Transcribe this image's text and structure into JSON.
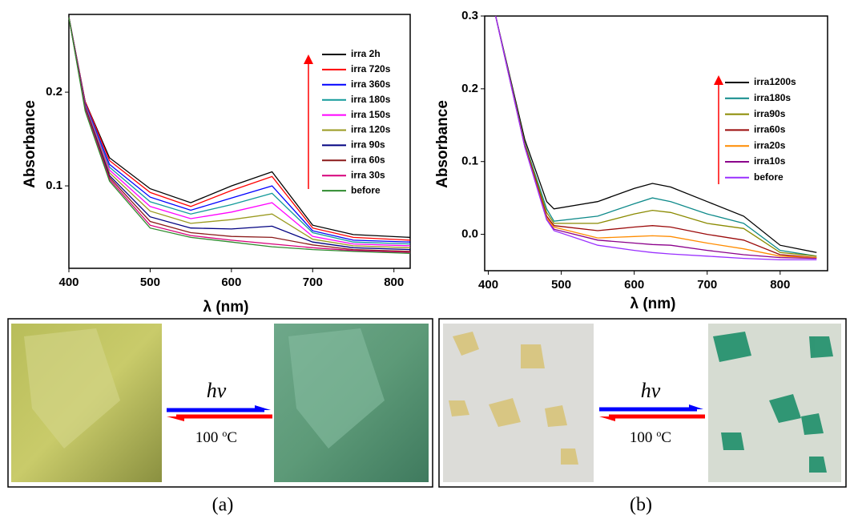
{
  "chart_data": [
    {
      "type": "line",
      "ylabel": "Absorbance",
      "xlabel": "λ (nm)",
      "x": [
        400,
        420,
        450,
        500,
        550,
        600,
        650,
        700,
        750,
        820
      ],
      "xlim": [
        400,
        820
      ],
      "xticks": [
        400,
        500,
        600,
        700,
        800
      ],
      "ylim": [
        0.012,
        0.283
      ],
      "yticks": [
        0.1,
        0.2
      ],
      "series": [
        {
          "name": "irra 2h",
          "color": "#000000",
          "values": [
            0.28,
            0.19,
            0.13,
            0.097,
            0.082,
            0.1,
            0.115,
            0.058,
            0.048,
            0.045
          ]
        },
        {
          "name": "irra 720s",
          "color": "#ff0000",
          "values": [
            0.28,
            0.19,
            0.127,
            0.093,
            0.078,
            0.095,
            0.11,
            0.055,
            0.045,
            0.042
          ]
        },
        {
          "name": "irra 360s",
          "color": "#0000ff",
          "values": [
            0.28,
            0.188,
            0.123,
            0.088,
            0.074,
            0.087,
            0.1,
            0.052,
            0.042,
            0.04
          ]
        },
        {
          "name": "irra 180s",
          "color": "#139a9a",
          "values": [
            0.28,
            0.187,
            0.12,
            0.083,
            0.07,
            0.08,
            0.092,
            0.05,
            0.04,
            0.038
          ]
        },
        {
          "name": "irra 150s",
          "color": "#ff00ff",
          "values": [
            0.28,
            0.186,
            0.117,
            0.078,
            0.065,
            0.072,
            0.082,
            0.046,
            0.038,
            0.036
          ]
        },
        {
          "name": "irra 120s",
          "color": "#9a9a20",
          "values": [
            0.28,
            0.185,
            0.114,
            0.073,
            0.06,
            0.064,
            0.07,
            0.043,
            0.036,
            0.034
          ]
        },
        {
          "name": "irra 90s",
          "color": "#000080",
          "values": [
            0.28,
            0.184,
            0.111,
            0.067,
            0.055,
            0.054,
            0.057,
            0.04,
            0.034,
            0.032
          ]
        },
        {
          "name": "irra 60s",
          "color": "#8b1a1a",
          "values": [
            0.28,
            0.183,
            0.109,
            0.062,
            0.05,
            0.046,
            0.045,
            0.037,
            0.032,
            0.03
          ]
        },
        {
          "name": "irra 30s",
          "color": "#d6007a",
          "values": [
            0.28,
            0.182,
            0.107,
            0.058,
            0.047,
            0.042,
            0.038,
            0.034,
            0.031,
            0.029
          ]
        },
        {
          "name": "before",
          "color": "#2e8b2e",
          "values": [
            0.28,
            0.18,
            0.105,
            0.055,
            0.045,
            0.04,
            0.035,
            0.032,
            0.03,
            0.028
          ]
        }
      ]
    },
    {
      "type": "line",
      "ylabel": "Absorbance",
      "xlabel": "λ (nm)",
      "x": [
        410,
        450,
        480,
        490,
        550,
        600,
        625,
        650,
        700,
        750,
        800,
        850
      ],
      "xlim": [
        395,
        865
      ],
      "xticks": [
        400,
        500,
        600,
        700,
        800
      ],
      "ylim": [
        -0.05,
        0.3
      ],
      "yticks": [
        {
          "value": 0,
          "label": "0.0"
        },
        0.1,
        0.2,
        0.3
      ],
      "series": [
        {
          "name": "irra1200s",
          "color": "#000000",
          "values": [
            0.3,
            0.13,
            0.045,
            0.035,
            0.045,
            0.063,
            0.07,
            0.065,
            0.045,
            0.025,
            -0.015,
            -0.025
          ]
        },
        {
          "name": "irra180s",
          "color": "#0e8a8a",
          "values": [
            0.3,
            0.125,
            0.035,
            0.018,
            0.025,
            0.042,
            0.05,
            0.045,
            0.028,
            0.015,
            -0.022,
            -0.03
          ]
        },
        {
          "name": "irra90s",
          "color": "#8a8a00",
          "values": [
            0.3,
            0.124,
            0.03,
            0.015,
            0.015,
            0.028,
            0.033,
            0.03,
            0.015,
            0.008,
            -0.025,
            -0.03
          ]
        },
        {
          "name": "irra60s",
          "color": "#9b0a0a",
          "values": [
            0.3,
            0.122,
            0.025,
            0.012,
            0.005,
            0.01,
            0.012,
            0.01,
            0,
            -0.008,
            -0.028,
            -0.032
          ]
        },
        {
          "name": "irra20s",
          "color": "#ff8c00",
          "values": [
            0.3,
            0.12,
            0.022,
            0.01,
            -0.005,
            -0.003,
            -0.002,
            -0.003,
            -0.012,
            -0.02,
            -0.03,
            -0.032
          ]
        },
        {
          "name": "irra10s",
          "color": "#8b008b",
          "values": [
            0.3,
            0.12,
            0.02,
            0.007,
            -0.008,
            -0.012,
            -0.014,
            -0.015,
            -0.022,
            -0.028,
            -0.032,
            -0.033
          ]
        },
        {
          "name": "before",
          "color": "#9a30ff",
          "values": [
            0.3,
            0.12,
            0.02,
            0.005,
            -0.015,
            -0.022,
            -0.025,
            -0.027,
            -0.03,
            -0.033,
            -0.035,
            -0.035
          ]
        }
      ]
    }
  ],
  "photos": [
    {
      "forward": "hv",
      "reverse_value": "100",
      "reverse_degree": "o",
      "reverse_unit": "C",
      "caption": "(a)"
    },
    {
      "forward": "hv",
      "reverse_value": "100",
      "reverse_degree": "o",
      "reverse_unit": "C",
      "caption": "(b)"
    }
  ]
}
